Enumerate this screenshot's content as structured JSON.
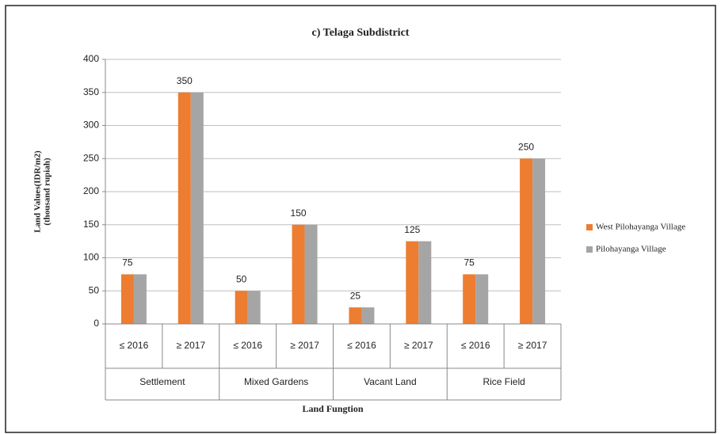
{
  "chart_data": {
    "type": "bar",
    "title": "c) Telaga Subdistrict",
    "y_label": [
      "Land Values(IDR/m2)",
      "(thousand rupiah)"
    ],
    "x_label": "Land Fungtion",
    "categories": [
      "≤ 2016",
      "≥ 2017",
      "≤ 2016",
      "≥ 2017",
      "≤ 2016",
      "≥ 2017",
      "≤ 2016",
      "≥ 2017"
    ],
    "category_groups": [
      "Settlement",
      "Mixed Gardens",
      "Vacant Land",
      "Rice Field"
    ],
    "series": [
      {
        "name": "West Pilohayanga Village",
        "color": "#ed7d31",
        "values": [
          75,
          350,
          50,
          150,
          25,
          125,
          75,
          250
        ]
      },
      {
        "name": "Pilohayanga Village",
        "color": "#a5a5a5",
        "values": [
          75,
          350,
          50,
          150,
          25,
          125,
          75,
          250
        ]
      }
    ],
    "ylim": [
      0,
      400
    ],
    "yticks": [
      0,
      50,
      100,
      150,
      200,
      250,
      300,
      350,
      400
    ],
    "grid": true,
    "legend": "right"
  }
}
